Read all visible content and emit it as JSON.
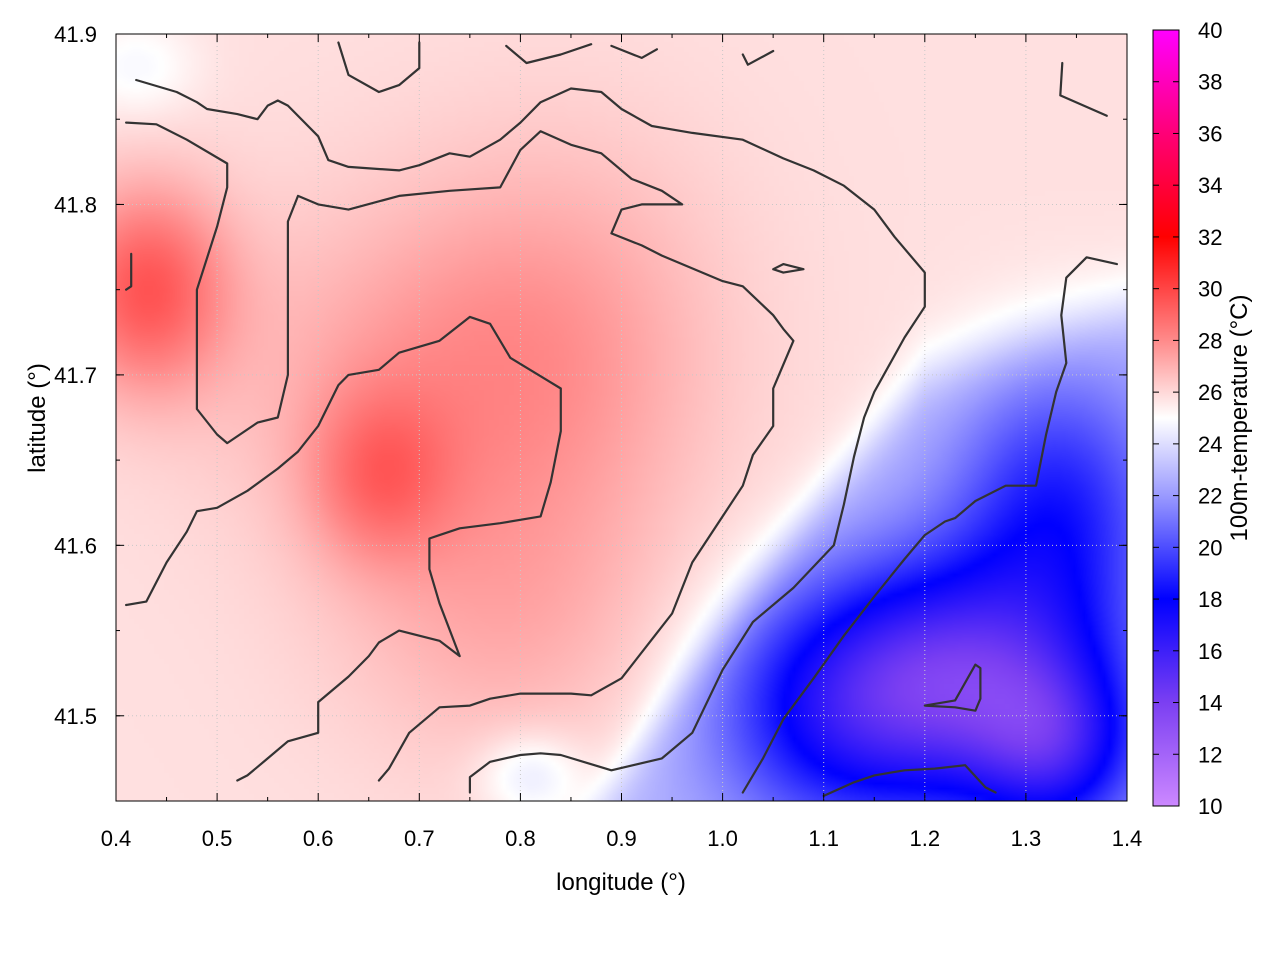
{
  "chart_data": {
    "type": "heatmap",
    "xlabel": "longitude (°)",
    "ylabel": "latitude (°)",
    "colorbar_label": "100m-temperature (°C)",
    "xlim": [
      0.4,
      1.4
    ],
    "ylim": [
      41.45,
      41.9
    ],
    "x_ticks": [
      "0.4",
      "0.5",
      "0.6",
      "0.7",
      "0.8",
      "0.9",
      "1.0",
      "1.1",
      "1.2",
      "1.3",
      "1.4"
    ],
    "y_ticks": [
      "41.5",
      "41.6",
      "41.7",
      "41.8",
      "41.9"
    ],
    "colorbar_range": [
      10,
      40
    ],
    "colorbar_ticks": [
      "10",
      "12",
      "14",
      "16",
      "18",
      "20",
      "22",
      "24",
      "26",
      "28",
      "30",
      "32",
      "34",
      "36",
      "38",
      "40"
    ],
    "colormap": [
      {
        "value": 10,
        "color": "#cc88ff"
      },
      {
        "value": 14,
        "color": "#7b3ff2"
      },
      {
        "value": 18,
        "color": "#0000ff"
      },
      {
        "value": 22,
        "color": "#9a9aff"
      },
      {
        "value": 25,
        "color": "#ffffff"
      },
      {
        "value": 28,
        "color": "#ff8a8a"
      },
      {
        "value": 32,
        "color": "#ff0000"
      },
      {
        "value": 36,
        "color": "#ff0077"
      },
      {
        "value": 40,
        "color": "#ff00ff"
      }
    ],
    "grid": true,
    "temperature_field": {
      "background": 25.8,
      "warm_zones": [
        {
          "lon": 0.43,
          "lat": 41.75,
          "amp": 3.6,
          "rx": 0.08,
          "ry": 0.06
        },
        {
          "lon": 0.66,
          "lat": 41.64,
          "amp": 2.2,
          "rx": 0.07,
          "ry": 0.05
        },
        {
          "lon": 0.7,
          "lat": 41.7,
          "amp": 1.4,
          "rx": 0.2,
          "ry": 0.1
        },
        {
          "lon": 0.84,
          "lat": 41.72,
          "amp": 1.3,
          "rx": 0.16,
          "ry": 0.12
        },
        {
          "lon": 0.78,
          "lat": 41.56,
          "amp": 1.2,
          "rx": 0.16,
          "ry": 0.09
        }
      ],
      "cold_zones": [
        {
          "lon": 1.23,
          "lat": 41.52,
          "amp": 7.5,
          "rx": 0.14,
          "ry": 0.07
        },
        {
          "lon": 1.33,
          "lat": 41.48,
          "amp": 4.5,
          "rx": 0.08,
          "ry": 0.05
        },
        {
          "lon": 1.33,
          "lat": 41.62,
          "amp": 4.0,
          "rx": 0.1,
          "ry": 0.08
        },
        {
          "lon": 1.1,
          "lat": 41.5,
          "amp": 3.5,
          "rx": 0.12,
          "ry": 0.07
        },
        {
          "lon": 0.42,
          "lat": 41.88,
          "amp": 1.0,
          "rx": 0.06,
          "ry": 0.03
        },
        {
          "lon": 0.81,
          "lat": 41.465,
          "amp": 1.6,
          "rx": 0.05,
          "ry": 0.025
        }
      ],
      "cold_front": {
        "points": [
          [
            0.88,
            41.45
          ],
          [
            1.0,
            41.55
          ],
          [
            1.1,
            41.63
          ],
          [
            1.2,
            41.7
          ],
          [
            1.4,
            41.74
          ]
        ],
        "cold_side_drop": 3.0
      }
    },
    "contours": [
      [
        [
          0.42,
          41.873
        ],
        [
          0.46,
          41.866
        ],
        [
          0.48,
          41.86
        ],
        [
          0.49,
          41.856
        ],
        [
          0.52,
          41.853
        ],
        [
          0.54,
          41.85
        ],
        [
          0.55,
          41.858
        ],
        [
          0.56,
          41.861
        ],
        [
          0.57,
          41.858
        ],
        [
          0.6,
          41.84
        ],
        [
          0.61,
          41.826
        ],
        [
          0.63,
          41.822
        ],
        [
          0.68,
          41.82
        ],
        [
          0.7,
          41.823
        ],
        [
          0.73,
          41.83
        ],
        [
          0.75,
          41.828
        ],
        [
          0.78,
          41.838
        ],
        [
          0.8,
          41.848
        ],
        [
          0.82,
          41.86
        ],
        [
          0.85,
          41.868
        ],
        [
          0.88,
          41.866
        ],
        [
          0.9,
          41.856
        ],
        [
          0.93,
          41.846
        ],
        [
          0.97,
          41.842
        ],
        [
          1.02,
          41.838
        ],
        [
          1.06,
          41.827
        ],
        [
          1.09,
          41.82
        ],
        [
          1.12,
          41.811
        ],
        [
          1.15,
          41.797
        ],
        [
          1.17,
          41.781
        ],
        [
          1.2,
          41.76
        ],
        [
          1.2,
          41.74
        ],
        [
          1.18,
          41.722
        ],
        [
          1.15,
          41.69
        ],
        [
          1.14,
          41.675
        ],
        [
          1.13,
          41.652
        ],
        [
          1.12,
          41.624
        ],
        [
          1.11,
          41.6
        ],
        [
          1.07,
          41.575
        ],
        [
          1.03,
          41.555
        ],
        [
          1.0,
          41.527
        ],
        [
          0.97,
          41.49
        ],
        [
          0.94,
          41.475
        ],
        [
          0.89,
          41.468
        ],
        [
          0.84,
          41.477
        ],
        [
          0.82,
          41.478
        ],
        [
          0.8,
          41.477
        ],
        [
          0.77,
          41.473
        ],
        [
          0.75,
          41.464
        ],
        [
          0.75,
          41.455
        ]
      ],
      [
        [
          0.41,
          41.848
        ],
        [
          0.44,
          41.847
        ],
        [
          0.47,
          41.838
        ],
        [
          0.51,
          41.824
        ],
        [
          0.51,
          41.81
        ],
        [
          0.5,
          41.787
        ],
        [
          0.48,
          41.75
        ],
        [
          0.48,
          41.7
        ],
        [
          0.48,
          41.68
        ],
        [
          0.5,
          41.665
        ],
        [
          0.51,
          41.66
        ],
        [
          0.54,
          41.672
        ],
        [
          0.56,
          41.675
        ],
        [
          0.57,
          41.7
        ],
        [
          0.57,
          41.75
        ],
        [
          0.57,
          41.79
        ],
        [
          0.58,
          41.805
        ],
        [
          0.6,
          41.8
        ],
        [
          0.63,
          41.797
        ],
        [
          0.68,
          41.805
        ],
        [
          0.73,
          41.808
        ],
        [
          0.78,
          41.81
        ],
        [
          0.8,
          41.832
        ],
        [
          0.82,
          41.843
        ],
        [
          0.85,
          41.835
        ],
        [
          0.88,
          41.83
        ],
        [
          0.91,
          41.815
        ],
        [
          0.94,
          41.808
        ],
        [
          0.96,
          41.8
        ],
        [
          0.92,
          41.8
        ],
        [
          0.9,
          41.797
        ],
        [
          0.89,
          41.783
        ],
        [
          0.92,
          41.776
        ],
        [
          0.94,
          41.77
        ],
        [
          1.0,
          41.755
        ],
        [
          1.02,
          41.752
        ],
        [
          1.05,
          41.735
        ],
        [
          1.06,
          41.727
        ],
        [
          1.07,
          41.72
        ],
        [
          1.05,
          41.692
        ],
        [
          1.05,
          41.67
        ],
        [
          1.03,
          41.653
        ],
        [
          1.02,
          41.635
        ],
        [
          1.0,
          41.617
        ],
        [
          0.97,
          41.59
        ],
        [
          0.95,
          41.56
        ],
        [
          0.9,
          41.522
        ],
        [
          0.87,
          41.512
        ],
        [
          0.85,
          41.513
        ],
        [
          0.8,
          41.513
        ],
        [
          0.77,
          41.51
        ],
        [
          0.75,
          41.506
        ],
        [
          0.72,
          41.505
        ],
        [
          0.69,
          41.49
        ],
        [
          0.67,
          41.469
        ],
        [
          0.66,
          41.462
        ]
      ],
      [
        [
          0.41,
          41.565
        ],
        [
          0.43,
          41.567
        ],
        [
          0.45,
          41.59
        ],
        [
          0.47,
          41.608
        ],
        [
          0.48,
          41.62
        ],
        [
          0.5,
          41.622
        ],
        [
          0.53,
          41.632
        ],
        [
          0.56,
          41.645
        ],
        [
          0.58,
          41.655
        ],
        [
          0.6,
          41.67
        ],
        [
          0.62,
          41.694
        ],
        [
          0.63,
          41.7
        ],
        [
          0.66,
          41.703
        ],
        [
          0.68,
          41.713
        ],
        [
          0.72,
          41.72
        ],
        [
          0.75,
          41.734
        ],
        [
          0.77,
          41.73
        ],
        [
          0.79,
          41.71
        ],
        [
          0.84,
          41.692
        ],
        [
          0.84,
          41.667
        ],
        [
          0.83,
          41.637
        ],
        [
          0.82,
          41.617
        ],
        [
          0.78,
          41.613
        ],
        [
          0.74,
          41.61
        ],
        [
          0.72,
          41.606
        ],
        [
          0.71,
          41.604
        ],
        [
          0.71,
          41.586
        ],
        [
          0.72,
          41.566
        ],
        [
          0.74,
          41.535
        ],
        [
          0.72,
          41.544
        ],
        [
          0.68,
          41.55
        ],
        [
          0.66,
          41.543
        ],
        [
          0.65,
          41.535
        ],
        [
          0.63,
          41.523
        ],
        [
          0.6,
          41.508
        ],
        [
          0.6,
          41.49
        ],
        [
          0.57,
          41.485
        ],
        [
          0.55,
          41.475
        ],
        [
          0.53,
          41.465
        ],
        [
          0.52,
          41.462
        ]
      ],
      [
        [
          0.415,
          41.771
        ],
        [
          0.415,
          41.752
        ],
        [
          0.41,
          41.75
        ]
      ],
      [
        [
          0.62,
          41.895
        ],
        [
          0.63,
          41.876
        ],
        [
          0.66,
          41.866
        ],
        [
          0.68,
          41.87
        ],
        [
          0.7,
          41.88
        ],
        [
          0.7,
          41.895
        ]
      ],
      [
        [
          0.786,
          41.893
        ],
        [
          0.806,
          41.883
        ],
        [
          0.84,
          41.888
        ],
        [
          0.87,
          41.894
        ]
      ],
      [
        [
          0.89,
          41.893
        ],
        [
          0.92,
          41.886
        ],
        [
          0.935,
          41.891
        ]
      ],
      [
        [
          1.02,
          41.888
        ],
        [
          1.025,
          41.882
        ],
        [
          1.05,
          41.89
        ]
      ],
      [
        [
          1.336,
          41.883
        ],
        [
          1.334,
          41.864
        ],
        [
          1.38,
          41.852
        ]
      ],
      [
        [
          1.05,
          41.762
        ],
        [
          1.06,
          41.765
        ],
        [
          1.08,
          41.762
        ],
        [
          1.06,
          41.76
        ],
        [
          1.05,
          41.762
        ]
      ],
      [
        [
          1.02,
          41.455
        ],
        [
          1.04,
          41.475
        ],
        [
          1.06,
          41.498
        ],
        [
          1.09,
          41.522
        ],
        [
          1.12,
          41.547
        ],
        [
          1.15,
          41.57
        ],
        [
          1.18,
          41.592
        ],
        [
          1.2,
          41.606
        ],
        [
          1.22,
          41.614
        ],
        [
          1.23,
          41.616
        ],
        [
          1.25,
          41.626
        ],
        [
          1.28,
          41.635
        ],
        [
          1.31,
          41.635
        ],
        [
          1.32,
          41.665
        ],
        [
          1.33,
          41.69
        ],
        [
          1.34,
          41.707
        ],
        [
          1.335,
          41.735
        ],
        [
          1.34,
          41.757
        ],
        [
          1.36,
          41.769
        ],
        [
          1.39,
          41.765
        ]
      ],
      [
        [
          1.1,
          41.453
        ],
        [
          1.13,
          41.461
        ],
        [
          1.15,
          41.465
        ],
        [
          1.18,
          41.468
        ],
        [
          1.21,
          41.469
        ],
        [
          1.24,
          41.471
        ],
        [
          1.26,
          41.458
        ],
        [
          1.27,
          41.455
        ]
      ],
      [
        [
          1.2,
          41.506
        ],
        [
          1.23,
          41.509
        ],
        [
          1.25,
          41.53
        ],
        [
          1.255,
          41.528
        ],
        [
          1.255,
          41.51
        ],
        [
          1.25,
          41.503
        ],
        [
          1.23,
          41.505
        ],
        [
          1.2,
          41.506
        ]
      ]
    ]
  }
}
